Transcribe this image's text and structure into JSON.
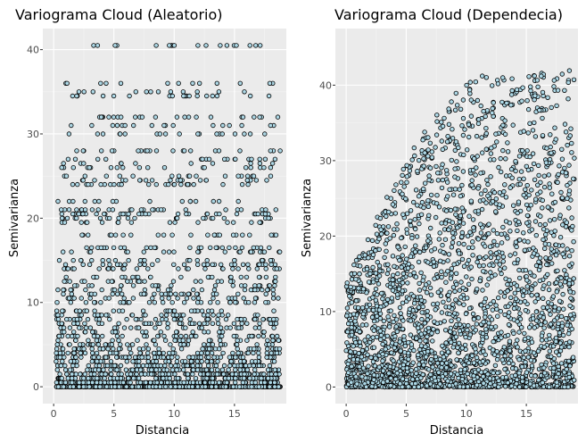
{
  "colors": {
    "panel_background": "#EBEBEB",
    "grid_major": "#FFFFFF",
    "grid_minor": "#F5F5F5",
    "point_fill": "#ADD8E6",
    "point_stroke": "#000000",
    "tick_label": "#4D4D4D"
  },
  "chart_data": [
    {
      "type": "scatter",
      "title": "Variograma Cloud (Aleatorio)",
      "xlabel": "Distancia",
      "ylabel": "Semivarianza",
      "xlim": [
        -0.9,
        19.3
      ],
      "ylim": [
        -2.0,
        42.5
      ],
      "xticks": [
        0,
        5,
        10,
        15
      ],
      "yticks": [
        0,
        10,
        20,
        30,
        40
      ],
      "grid": true,
      "legend": "none",
      "x_range_of_points": [
        0.2,
        18.8
      ],
      "y_levels": [
        0,
        0.5,
        1,
        1.5,
        2,
        2.5,
        3,
        3.5,
        4,
        4.5,
        5,
        5.5,
        6,
        6.5,
        7,
        7.5,
        8,
        8.5,
        9,
        10,
        10.5,
        11,
        11.5,
        12,
        12.5,
        13,
        14,
        14.5,
        15,
        16,
        16.5,
        18,
        19.5,
        20,
        20.5,
        21,
        22,
        24,
        24.5,
        25,
        26,
        26.5,
        27,
        28,
        30,
        31,
        32,
        34.5,
        35,
        36,
        40.5
      ],
      "n_points": 2200
    },
    {
      "type": "scatter",
      "title": "Variograma Cloud (Dependecia)",
      "xlabel": "Distancia",
      "ylabel": "Semivarianza",
      "xlim": [
        -0.9,
        19.3
      ],
      "ylim": [
        -2.2,
        47.5
      ],
      "xticks": [
        0,
        5,
        10,
        15
      ],
      "yticks": [
        0,
        10,
        20,
        30,
        40
      ],
      "grid": true,
      "legend": "none",
      "x_range_of_points": [
        0.0,
        19.0
      ],
      "y_range_of_points": [
        0.0,
        45.0
      ],
      "n_points": 2800
    }
  ]
}
